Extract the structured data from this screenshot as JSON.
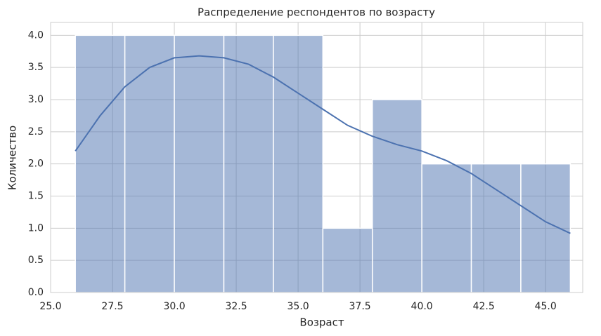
{
  "chart_data": {
    "type": "histogram",
    "title": "Распределение респондентов по возрасту",
    "xlabel": "Возраст",
    "ylabel": "Количество",
    "bins": [
      26,
      28,
      30,
      32,
      34,
      36,
      38,
      40,
      42,
      44,
      46
    ],
    "values": [
      4,
      4,
      4,
      4,
      4,
      1,
      3,
      2,
      2,
      2
    ],
    "color": "#4c72b0",
    "kde": {
      "color": "#4c72b0",
      "x": [
        26,
        27,
        28,
        29,
        30,
        31,
        32,
        33,
        34,
        35,
        36,
        37,
        38,
        39,
        40,
        41,
        42,
        43,
        44,
        45,
        46
      ],
      "values": [
        2.2,
        2.75,
        3.2,
        3.5,
        3.65,
        3.68,
        3.65,
        3.55,
        3.35,
        3.1,
        2.85,
        2.6,
        2.43,
        2.3,
        2.2,
        2.05,
        1.85,
        1.6,
        1.35,
        1.1,
        0.92
      ]
    },
    "xlim": [
      25,
      46.5
    ],
    "ylim": [
      0,
      4.2
    ],
    "xticks": [
      {
        "value": 25,
        "label": "25.0"
      },
      {
        "value": 27.5,
        "label": "27.5"
      },
      {
        "value": 30,
        "label": "30.0"
      },
      {
        "value": 32.5,
        "label": "32.5"
      },
      {
        "value": 35,
        "label": "35.0"
      },
      {
        "value": 37.5,
        "label": "37.5"
      },
      {
        "value": 40,
        "label": "40.0"
      },
      {
        "value": 42.5,
        "label": "42.5"
      },
      {
        "value": 45,
        "label": "45.0"
      }
    ],
    "yticks": [
      {
        "value": 0,
        "label": "0.0"
      },
      0.5,
      {
        "value": 1,
        "label": "1.0"
      },
      1.5,
      {
        "value": 2,
        "label": "2.0"
      },
      2.5,
      {
        "value": 3,
        "label": "3.0"
      },
      3.5,
      {
        "value": 4,
        "label": "4.0"
      }
    ],
    "grid": true
  }
}
